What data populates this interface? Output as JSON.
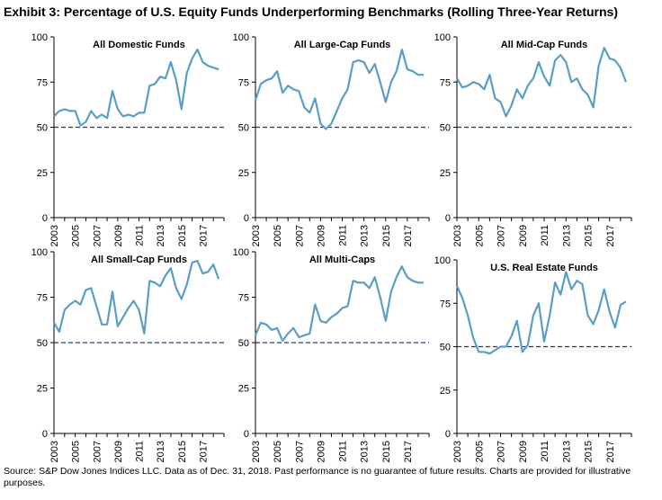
{
  "title": "Exhibit 3: Percentage of U.S. Equity Funds Underperforming Benchmarks (Rolling Three-Year Returns)",
  "footnote": "Source: S&P Dow Jones Indices LLC.  Data as of Dec. 31, 2018.  Past performance is no guarantee of future results.  Charts are provided for illustrative purposes.",
  "colors": {
    "line": "#5b9ec4",
    "reference": "#1f3f6e",
    "axis": "#000000"
  },
  "chart_data": [
    {
      "type": "line",
      "title": "All Domestic Funds",
      "ylim": [
        0,
        100
      ],
      "yticks": [
        0,
        25,
        50,
        75,
        100
      ],
      "xlim": [
        2003,
        2019
      ],
      "xticks": [
        "2003",
        "2005",
        "2007",
        "2009",
        "2011",
        "2013",
        "2015",
        "2017"
      ],
      "reference_line": 50,
      "x": [
        2003,
        2003.5,
        2004,
        2004.5,
        2005,
        2005.5,
        2006,
        2006.5,
        2007,
        2007.5,
        2008,
        2008.5,
        2009,
        2009.5,
        2010,
        2010.5,
        2011,
        2011.5,
        2012,
        2012.5,
        2013,
        2013.5,
        2014,
        2014.5,
        2015,
        2015.5,
        2016,
        2016.5,
        2017,
        2017.5,
        2018,
        2018.5
      ],
      "values": [
        56,
        59,
        60,
        59,
        59,
        51,
        53,
        59,
        55,
        57,
        55,
        70,
        60,
        56,
        57,
        56,
        58,
        58,
        73,
        74,
        78,
        77,
        86,
        76,
        60,
        80,
        88,
        93,
        86,
        84,
        83,
        82
      ]
    },
    {
      "type": "line",
      "title": "All Large-Cap Funds",
      "ylim": [
        0,
        100
      ],
      "yticks": [
        0,
        25,
        50,
        75,
        100
      ],
      "xlim": [
        2003,
        2019
      ],
      "xticks": [
        "2003",
        "2005",
        "2007",
        "2009",
        "2011",
        "2013",
        "2015",
        "2017"
      ],
      "reference_line": 50,
      "x": [
        2003,
        2003.5,
        2004,
        2004.5,
        2005,
        2005.5,
        2006,
        2006.5,
        2007,
        2007.5,
        2008,
        2008.5,
        2009,
        2009.5,
        2010,
        2010.5,
        2011,
        2011.5,
        2012,
        2012.5,
        2013,
        2013.5,
        2014,
        2014.5,
        2015,
        2015.5,
        2016,
        2016.5,
        2017,
        2017.5,
        2018,
        2018.5
      ],
      "values": [
        65,
        74,
        76,
        77,
        81,
        69,
        73,
        71,
        70,
        61,
        58,
        66,
        52,
        49,
        52,
        59,
        66,
        71,
        86,
        87,
        86,
        80,
        85,
        75,
        64,
        75,
        81,
        93,
        82,
        81,
        79,
        79
      ]
    },
    {
      "type": "line",
      "title": "All Mid-Cap Funds",
      "ylim": [
        0,
        100
      ],
      "yticks": [
        0,
        25,
        50,
        75,
        100
      ],
      "xlim": [
        2003,
        2019
      ],
      "xticks": [
        "2003",
        "2005",
        "2007",
        "2009",
        "2011",
        "2013",
        "2015",
        "2017"
      ],
      "reference_line": 50,
      "x": [
        2003,
        2003.5,
        2004,
        2004.5,
        2005,
        2005.5,
        2006,
        2006.5,
        2007,
        2007.5,
        2008,
        2008.5,
        2009,
        2009.5,
        2010,
        2010.5,
        2011,
        2011.5,
        2012,
        2012.5,
        2013,
        2013.5,
        2014,
        2014.5,
        2015,
        2015.5,
        2016,
        2016.5,
        2017,
        2017.5,
        2018,
        2018.5
      ],
      "values": [
        77,
        72,
        73,
        75,
        74,
        71,
        79,
        66,
        64,
        56,
        62,
        71,
        66,
        73,
        77,
        86,
        78,
        73,
        87,
        90,
        86,
        75,
        77,
        71,
        68,
        61,
        84,
        94,
        88,
        87,
        83,
        75
      ]
    },
    {
      "type": "line",
      "title": "All Small-Cap Funds",
      "ylim": [
        0,
        100
      ],
      "yticks": [
        0,
        25,
        50,
        75,
        100
      ],
      "xlim": [
        2003,
        2019
      ],
      "xticks": [
        "2003",
        "2005",
        "2007",
        "2009",
        "2011",
        "2013",
        "2015",
        "2017"
      ],
      "reference_line": 50,
      "x": [
        2003,
        2003.5,
        2004,
        2004.5,
        2005,
        2005.5,
        2006,
        2006.5,
        2007,
        2007.5,
        2008,
        2008.5,
        2009,
        2009.5,
        2010,
        2010.5,
        2011,
        2011.5,
        2012,
        2012.5,
        2013,
        2013.5,
        2014,
        2014.5,
        2015,
        2015.5,
        2016,
        2016.5,
        2017,
        2017.5,
        2018,
        2018.5
      ],
      "values": [
        61,
        56,
        68,
        71,
        73,
        71,
        79,
        80,
        70,
        60,
        60,
        78,
        59,
        64,
        69,
        73,
        68,
        55,
        84,
        83,
        81,
        87,
        91,
        80,
        74,
        82,
        94,
        95,
        88,
        89,
        93,
        85
      ]
    },
    {
      "type": "line",
      "title": "All Multi-Caps",
      "ylim": [
        0,
        100
      ],
      "yticks": [
        0,
        25,
        50,
        75,
        100
      ],
      "xlim": [
        2003,
        2019
      ],
      "xticks": [
        "2003",
        "2005",
        "2007",
        "2009",
        "2011",
        "2013",
        "2015",
        "2017"
      ],
      "reference_line": 50,
      "x": [
        2003,
        2003.5,
        2004,
        2004.5,
        2005,
        2005.5,
        2006,
        2006.5,
        2007,
        2007.5,
        2008,
        2008.5,
        2009,
        2009.5,
        2010,
        2010.5,
        2011,
        2011.5,
        2012,
        2012.5,
        2013,
        2013.5,
        2014,
        2014.5,
        2015,
        2015.5,
        2016,
        2016.5,
        2017,
        2017.5,
        2018,
        2018.5
      ],
      "values": [
        54,
        61,
        60,
        57,
        58,
        51,
        55,
        58,
        53,
        54,
        55,
        71,
        62,
        61,
        64,
        66,
        69,
        70,
        84,
        83,
        83,
        80,
        86,
        75,
        62,
        78,
        86,
        92,
        86,
        84,
        83,
        83
      ]
    },
    {
      "type": "line",
      "title": "U.S. Real Estate Funds",
      "ylim": [
        0,
        100
      ],
      "yticks": [
        0,
        25,
        50,
        75,
        100
      ],
      "xlim": [
        2003,
        2019
      ],
      "xticks": [
        "2003",
        "2005",
        "2007",
        "2009",
        "2011",
        "2013",
        "2015",
        "2017"
      ],
      "reference_line": 50,
      "x": [
        2003,
        2003.5,
        2004,
        2004.5,
        2005,
        2005.5,
        2006,
        2006.5,
        2007,
        2007.5,
        2008,
        2008.5,
        2009,
        2009.5,
        2010,
        2010.5,
        2011,
        2011.5,
        2012,
        2012.5,
        2013,
        2013.5,
        2014,
        2014.5,
        2015,
        2015.5,
        2016,
        2016.5,
        2017,
        2017.5,
        2018,
        2018.5
      ],
      "values": [
        85,
        78,
        68,
        55,
        47,
        47,
        46,
        48,
        50,
        50,
        56,
        65,
        47,
        51,
        68,
        75,
        53,
        68,
        87,
        80,
        93,
        83,
        88,
        86,
        68,
        63,
        71,
        83,
        70,
        61,
        74,
        76
      ]
    }
  ]
}
